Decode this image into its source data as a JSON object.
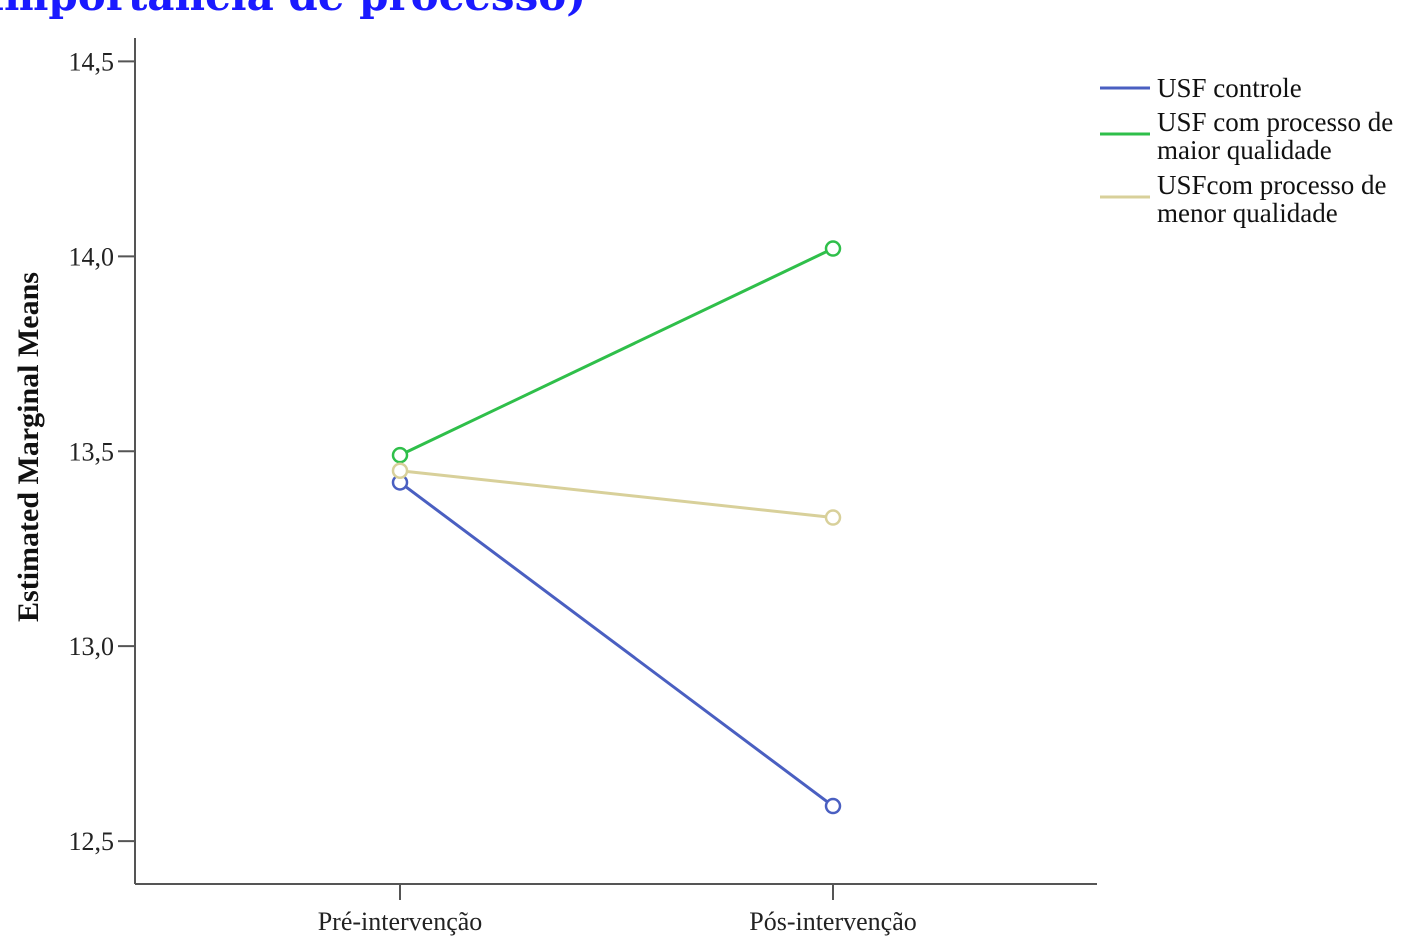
{
  "chart_data": {
    "type": "line",
    "title": "importância de processo)",
    "ylabel": "Estimated Marginal Means",
    "xlabel": "",
    "categories": [
      "Pré-intervenção",
      "Pós-intervenção"
    ],
    "ylim": [
      12.39,
      14.56
    ],
    "yticks": [
      12.5,
      13.0,
      13.5,
      14.0,
      14.5
    ],
    "ytick_labels": [
      "12,5",
      "13,0",
      "13,5",
      "14,0",
      "14,5"
    ],
    "grid": false,
    "legend_position": "top-right",
    "series": [
      {
        "name": "USF controle",
        "values": [
          13.42,
          12.59
        ],
        "color": "#4a5fc1",
        "legend_lines": [
          "USF controle"
        ]
      },
      {
        "name": "USF com processo de maior qualidade",
        "values": [
          13.49,
          14.02
        ],
        "color": "#2fbf4a",
        "legend_lines": [
          "USF com processo de",
          "maior qualidade"
        ]
      },
      {
        "name": "USFcom processo de menor qualidade",
        "values": [
          13.45,
          13.33
        ],
        "color": "#d8d09a",
        "legend_lines": [
          "USFcom processo de",
          "menor qualidade"
        ]
      }
    ]
  }
}
